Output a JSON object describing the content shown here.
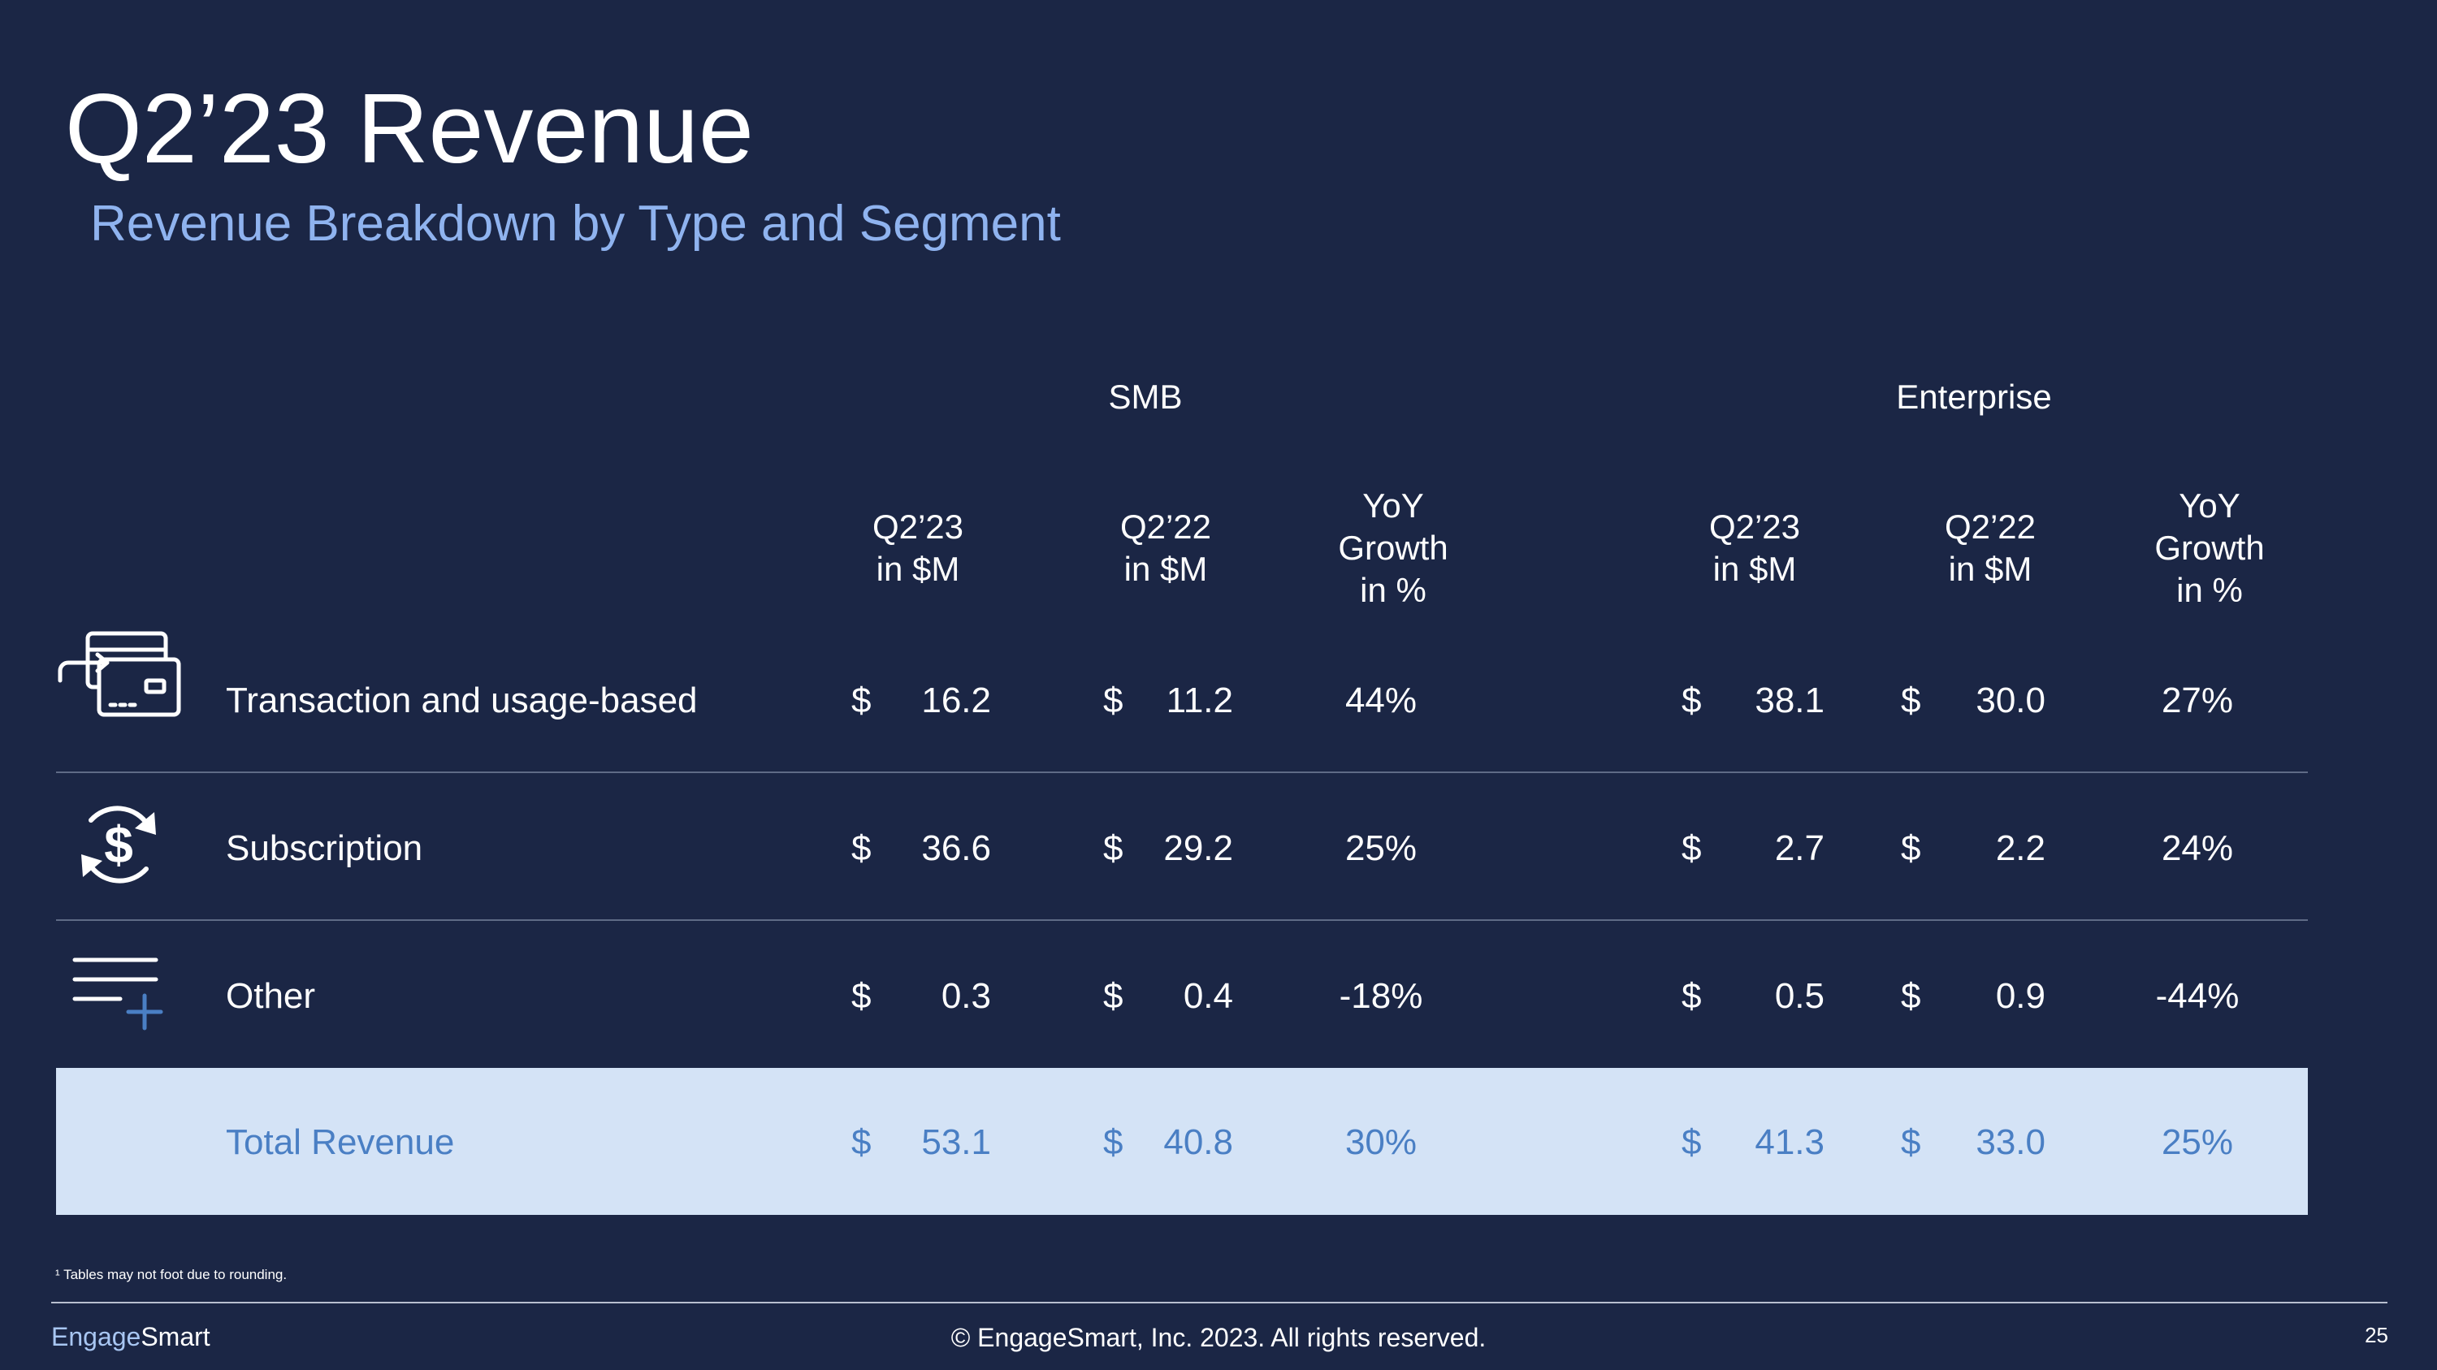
{
  "title": "Q2’23 Revenue",
  "subtitle": "Revenue Breakdown by Type and Segment",
  "groups": {
    "smb": "SMB",
    "enterprise": "Enterprise"
  },
  "columns": {
    "q223": "Q2’23\nin $M",
    "q222": "Q2’22\nin $M",
    "yoy": "YoY\nGrowth\nin %"
  },
  "currency": "$",
  "rows": [
    {
      "label": "Transaction and usage-based",
      "icon": "card-transfer-icon",
      "smb": {
        "q223": "16.2",
        "q222": "11.2",
        "yoy": "44%"
      },
      "ent": {
        "q223": "38.1",
        "q222": "30.0",
        "yoy": "27%"
      }
    },
    {
      "label": "Subscription",
      "icon": "dollar-cycle-icon",
      "smb": {
        "q223": "36.6",
        "q222": "29.2",
        "yoy": "25%"
      },
      "ent": {
        "q223": "2.7",
        "q222": "2.2",
        "yoy": "24%"
      }
    },
    {
      "label": "Other",
      "icon": "list-add-icon",
      "smb": {
        "q223": "0.3",
        "q222": "0.4",
        "yoy": "-18%"
      },
      "ent": {
        "q223": "0.5",
        "q222": "0.9",
        "yoy": "-44%"
      }
    },
    {
      "label": "Total Revenue",
      "smb": {
        "q223": "53.1",
        "q222": "40.8",
        "yoy": "30%"
      },
      "ent": {
        "q223": "41.3",
        "q222": "33.0",
        "yoy": "25%"
      }
    }
  ],
  "footnote": "¹ Tables may not foot due to rounding.",
  "footer": {
    "logo_part1": "Engage",
    "logo_part2": "Smart",
    "copyright": "© EngageSmart, Inc. 2023. All rights reserved.",
    "page": "25"
  },
  "colors": {
    "background": "#1b2645",
    "accent": "#8fb3ef",
    "total_band": "#d4e3f6",
    "total_text": "#4a7fc4"
  }
}
